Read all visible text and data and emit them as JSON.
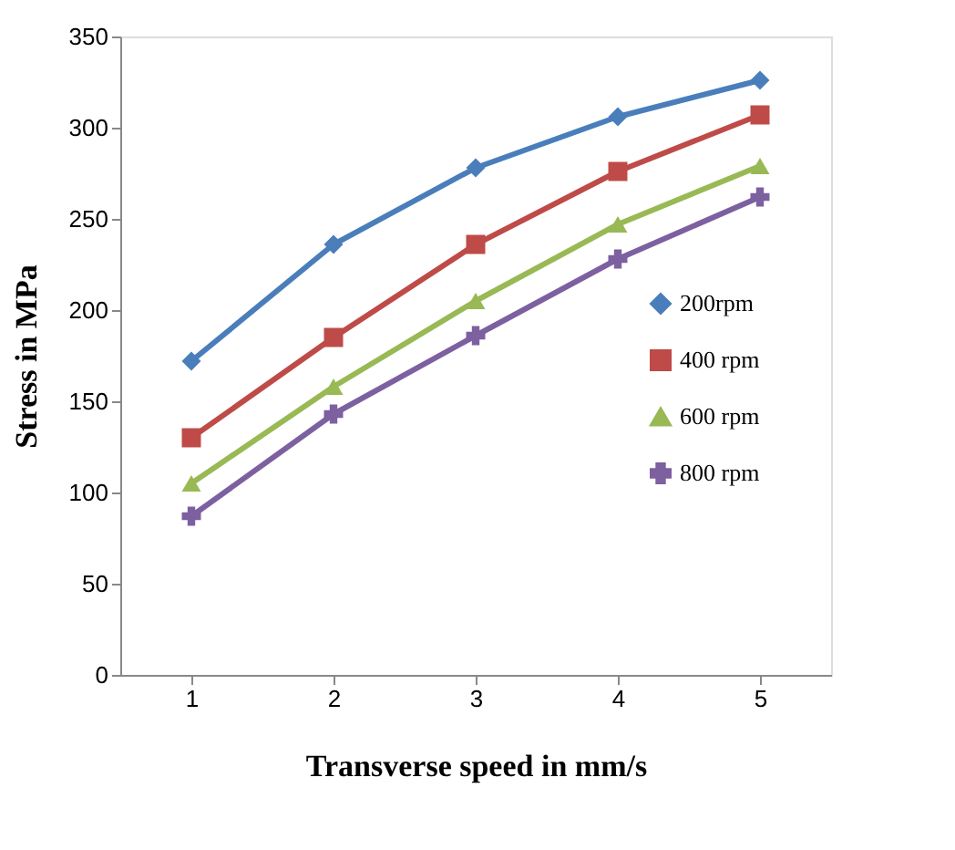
{
  "chart_data": {
    "type": "line",
    "xlabel": "Transverse speed in mm/s",
    "ylabel": "Stress in MPa",
    "categories": [
      "1",
      "2",
      "3",
      "4",
      "5"
    ],
    "ylim": [
      0,
      350
    ],
    "yticks": [
      0,
      50,
      100,
      150,
      200,
      250,
      300,
      350
    ],
    "grid": false,
    "legend": "right",
    "line_style": "solid",
    "series": [
      {
        "name": "200rpm",
        "color": "#4a7ebb",
        "marker": "diamond",
        "values": [
          172,
          236,
          278,
          306,
          326
        ]
      },
      {
        "name": "400 rpm",
        "color": "#be4b48",
        "marker": "square",
        "values": [
          130,
          185,
          236,
          276,
          307
        ]
      },
      {
        "name": "600 rpm",
        "color": "#98b954",
        "marker": "triangle",
        "values": [
          105,
          158,
          205,
          247,
          279
        ]
      },
      {
        "name": "800 rpm",
        "color": "#7d60a0",
        "marker": "cross",
        "values": [
          87,
          143,
          186,
          228,
          262
        ]
      }
    ]
  }
}
